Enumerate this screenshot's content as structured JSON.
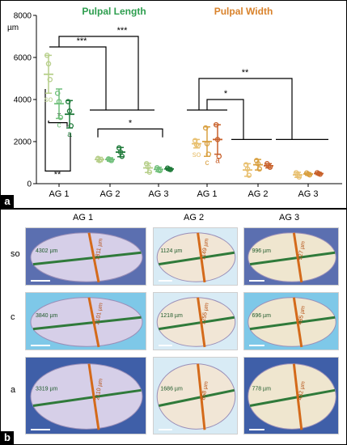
{
  "panel_a": {
    "label": "a",
    "chart_data": {
      "type": "scatter",
      "title_left": "Pulpal Length",
      "title_right": "Pulpal Width",
      "ylabel": "µm",
      "ylim": [
        0,
        8000
      ],
      "yticks": [
        "0",
        "2000",
        "4000",
        "6000",
        "8000"
      ],
      "categories": [
        "AG 1",
        "AG 2",
        "AG 3",
        "AG 1",
        "AG 2",
        "AG 3"
      ],
      "colors": {
        "length": "#2e9e4f",
        "width": "#d9822b",
        "so": "#b7cf8a",
        "c": "#6fbf7a",
        "a": "#1f7a3a",
        "wso": "#e8c070",
        "wc": "#d9a040",
        "wa": "#c8602a"
      },
      "groups": [
        {
          "measure": "length",
          "category": "AG 1",
          "series": [
            {
              "name": "so",
              "mean": 5200,
              "sd": 900,
              "points": [
                6100,
                5700,
                4950
              ]
            },
            {
              "name": "c",
              "mean": 3800,
              "sd": 700,
              "points": [
                4300,
                3900,
                3150
              ]
            },
            {
              "name": "a",
              "mean": 3300,
              "sd": 650,
              "points": [
                3900,
                3450,
                2750
              ]
            }
          ]
        },
        {
          "measure": "length",
          "category": "AG 2",
          "series": [
            {
              "name": "so",
              "mean": 1150,
              "sd": 100,
              "points": [
                1200,
                1100,
                1150
              ]
            },
            {
              "name": "c",
              "mean": 1150,
              "sd": 80,
              "points": [
                1180,
                1130,
                1100
              ]
            },
            {
              "name": "a",
              "mean": 1500,
              "sd": 220,
              "points": [
                1700,
                1500,
                1300
              ]
            }
          ]
        },
        {
          "measure": "length",
          "category": "AG 3",
          "series": [
            {
              "name": "so",
              "mean": 750,
              "sd": 220,
              "points": [
                950,
                800,
                550
              ]
            },
            {
              "name": "c",
              "mean": 680,
              "sd": 100,
              "points": [
                760,
                640,
                620
              ]
            },
            {
              "name": "a",
              "mean": 700,
              "sd": 60,
              "points": [
                740,
                690,
                670
              ]
            }
          ]
        },
        {
          "measure": "width",
          "category": "AG 1",
          "series": [
            {
              "name": "so",
              "mean": 1900,
              "sd": 200,
              "points": [
                2050,
                1850,
                1800
              ]
            },
            {
              "name": "c",
              "mean": 2000,
              "sd": 700,
              "points": [
                2650,
                1900,
                1400
              ]
            },
            {
              "name": "a",
              "mean": 2100,
              "sd": 700,
              "points": [
                2800,
                2100,
                1300
              ]
            }
          ]
        },
        {
          "measure": "width",
          "category": "AG 2",
          "series": [
            {
              "name": "so",
              "mean": 650,
              "sd": 300,
              "points": [
                900,
                700,
                400
              ]
            },
            {
              "name": "c",
              "mean": 900,
              "sd": 250,
              "points": [
                1100,
                950,
                700
              ]
            },
            {
              "name": "a",
              "mean": 850,
              "sd": 100,
              "points": [
                950,
                850,
                780
              ]
            }
          ]
        },
        {
          "measure": "width",
          "category": "AG 3",
          "series": [
            {
              "name": "so",
              "mean": 420,
              "sd": 120,
              "points": [
                520,
                420,
                320
              ]
            },
            {
              "name": "c",
              "mean": 460,
              "sd": 60,
              "points": [
                510,
                460,
                420
              ]
            },
            {
              "name": "a",
              "mean": 480,
              "sd": 50,
              "points": [
                520,
                480,
                450
              ]
            }
          ]
        }
      ],
      "point_labels": [
        {
          "text": "so",
          "measure": "length",
          "category": "AG 1",
          "series": "so"
        },
        {
          "text": "c",
          "measure": "length",
          "category": "AG 1",
          "series": "c"
        },
        {
          "text": "a",
          "measure": "length",
          "category": "AG 1",
          "series": "a"
        },
        {
          "text": "so",
          "measure": "width",
          "category": "AG 1",
          "series": "so"
        },
        {
          "text": "c",
          "measure": "width",
          "category": "AG 1",
          "series": "c"
        },
        {
          "text": "a",
          "measure": "width",
          "category": "AG 1",
          "series": "a"
        }
      ],
      "significance": [
        "***",
        "***",
        "*",
        "*",
        "**",
        "*",
        "**"
      ]
    }
  },
  "panel_b": {
    "label": "b",
    "columns": [
      "AG 1",
      "AG 2",
      "AG 3"
    ],
    "rows": [
      "so",
      "c",
      "a"
    ],
    "images": [
      [
        {
          "green": "4302 µm",
          "orange": "1811 µm"
        },
        {
          "green": "1124 µm",
          "orange": "1149 µm"
        },
        {
          "green": "996 µm",
          "orange": "527 µm"
        }
      ],
      [
        {
          "green": "3840 µm",
          "orange": "2101 µm"
        },
        {
          "green": "1218 µm",
          "orange": "1255 µm"
        },
        {
          "green": "696 µm",
          "orange": "485 µm"
        }
      ],
      [
        {
          "green": "3319 µm",
          "orange": "2110 µm"
        },
        {
          "green": "1686 µm",
          "orange": "858 µm"
        },
        {
          "green": "778 µm",
          "orange": "432 µm"
        }
      ]
    ]
  }
}
